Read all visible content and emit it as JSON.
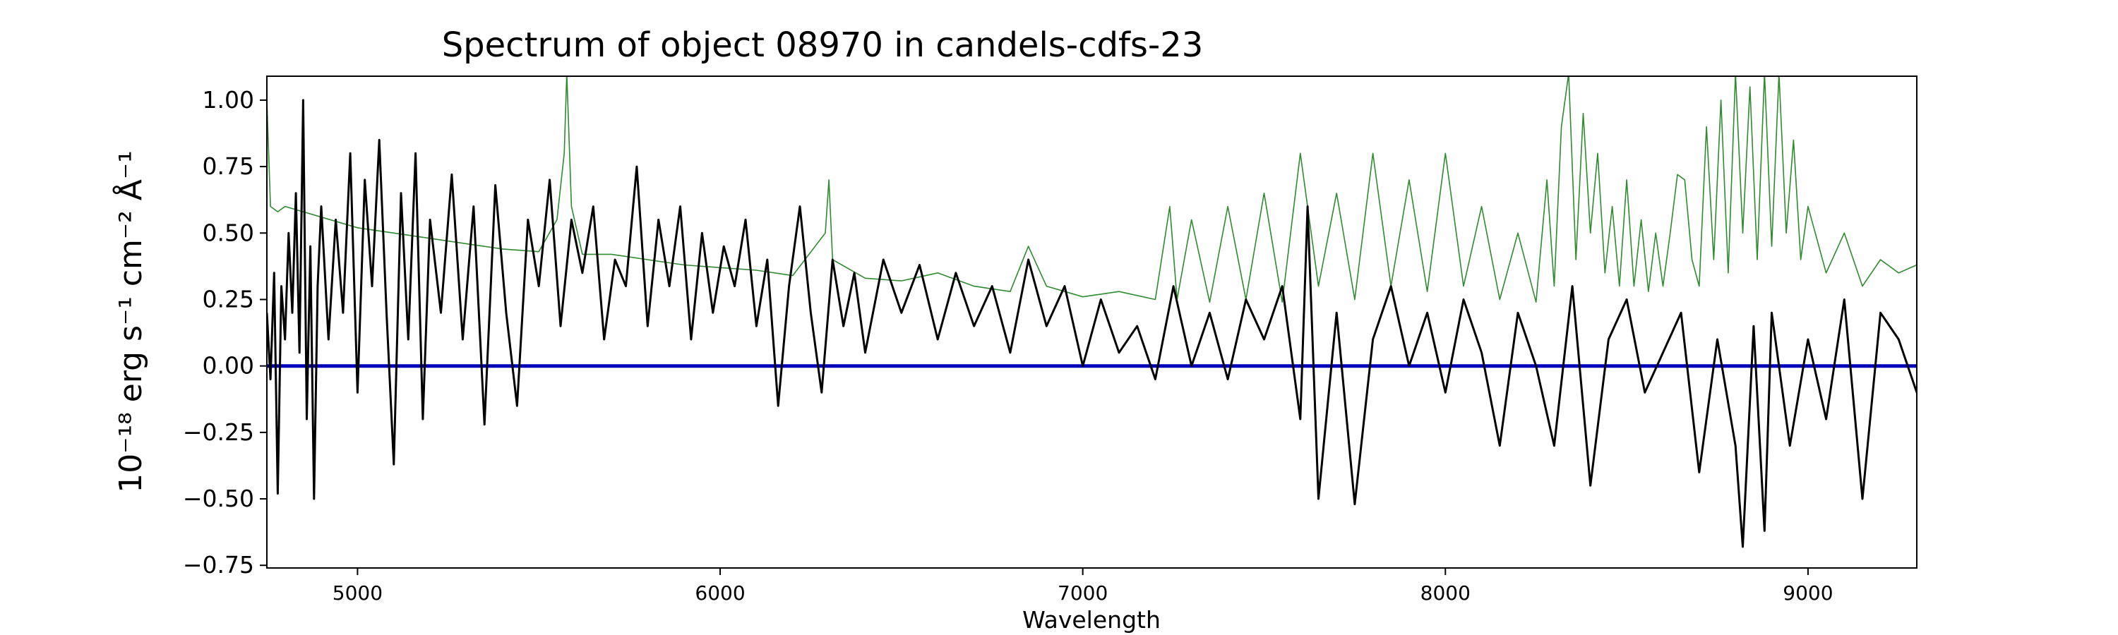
{
  "chart_data": {
    "type": "line",
    "title": "Spectrum of object 08970 in candels-cdfs-23",
    "xlabel": "Wavelength",
    "ylabel": "10⁻¹⁸ erg s⁻¹ cm⁻² Å⁻¹",
    "xlim": [
      4750,
      9300
    ],
    "ylim": [
      -0.76,
      1.09
    ],
    "xticks": [
      5000,
      6000,
      7000,
      8000,
      9000
    ],
    "yticks": [
      -0.75,
      -0.5,
      -0.25,
      0.0,
      0.25,
      0.5,
      0.75,
      1.0
    ],
    "xtick_labels": [
      "5000",
      "6000",
      "7000",
      "8000",
      "9000"
    ],
    "ytick_labels": [
      "−0.75",
      "−0.50",
      "−0.25",
      "0.00",
      "0.25",
      "0.50",
      "0.75",
      "1.00"
    ],
    "grid": false,
    "series": [
      {
        "color": "#000000",
        "x": [
          4750,
          4760,
          4770,
          4780,
          4790,
          4800,
          4810,
          4820,
          4830,
          4840,
          4850,
          4860,
          4870,
          4880,
          4890,
          4900,
          4920,
          4940,
          4960,
          4980,
          5000,
          5020,
          5040,
          5060,
          5080,
          5100,
          5120,
          5140,
          5160,
          5180,
          5200,
          5230,
          5260,
          5290,
          5320,
          5350,
          5380,
          5410,
          5440,
          5470,
          5500,
          5530,
          5560,
          5590,
          5620,
          5650,
          5680,
          5710,
          5740,
          5770,
          5800,
          5830,
          5860,
          5890,
          5920,
          5950,
          5980,
          6010,
          6040,
          6070,
          6100,
          6130,
          6160,
          6190,
          6220,
          6250,
          6280,
          6310,
          6340,
          6370,
          6400,
          6450,
          6500,
          6550,
          6600,
          6650,
          6700,
          6750,
          6800,
          6850,
          6900,
          6950,
          7000,
          7050,
          7100,
          7150,
          7200,
          7250,
          7300,
          7350,
          7400,
          7450,
          7500,
          7550,
          7600,
          7620,
          7650,
          7700,
          7750,
          7800,
          7850,
          7900,
          7950,
          8000,
          8050,
          8100,
          8150,
          8200,
          8250,
          8300,
          8350,
          8400,
          8450,
          8500,
          8550,
          8600,
          8650,
          8700,
          8750,
          8800,
          8820,
          8850,
          8880,
          8900,
          8950,
          9000,
          9050,
          9100,
          9150,
          9200,
          9250,
          9300
        ],
        "y": [
          0.2,
          -0.05,
          0.35,
          -0.48,
          0.3,
          0.1,
          0.5,
          0.2,
          0.65,
          0.05,
          1.0,
          -0.2,
          0.45,
          -0.5,
          0.3,
          0.6,
          0.1,
          0.55,
          0.2,
          0.8,
          -0.1,
          0.7,
          0.3,
          0.85,
          0.2,
          -0.37,
          0.65,
          0.1,
          0.8,
          -0.2,
          0.55,
          0.2,
          0.72,
          0.1,
          0.6,
          -0.22,
          0.68,
          0.2,
          -0.15,
          0.55,
          0.3,
          0.7,
          0.15,
          0.55,
          0.35,
          0.6,
          0.1,
          0.4,
          0.3,
          0.75,
          0.15,
          0.55,
          0.3,
          0.6,
          0.1,
          0.5,
          0.2,
          0.45,
          0.3,
          0.55,
          0.15,
          0.4,
          -0.15,
          0.3,
          0.6,
          0.2,
          -0.1,
          0.4,
          0.15,
          0.35,
          0.05,
          0.4,
          0.2,
          0.38,
          0.1,
          0.35,
          0.15,
          0.3,
          0.05,
          0.4,
          0.15,
          0.3,
          0.0,
          0.25,
          0.05,
          0.15,
          -0.05,
          0.3,
          0.0,
          0.2,
          -0.05,
          0.25,
          0.1,
          0.3,
          -0.2,
          0.6,
          -0.5,
          0.2,
          -0.52,
          0.1,
          0.3,
          0.0,
          0.2,
          -0.1,
          0.25,
          0.05,
          -0.3,
          0.2,
          0.0,
          -0.3,
          0.3,
          -0.45,
          0.1,
          0.25,
          -0.1,
          0.05,
          0.2,
          -0.4,
          0.1,
          -0.3,
          -0.68,
          0.15,
          -0.62,
          0.2,
          -0.3,
          0.1,
          -0.2,
          0.25,
          -0.5,
          0.2,
          0.1,
          -0.1
        ]
      },
      {
        "color": "#2e8b2e",
        "x": [
          4750,
          4760,
          4780,
          4800,
          4850,
          4900,
          5000,
          5100,
          5200,
          5300,
          5400,
          5500,
          5550,
          5570,
          5577,
          5590,
          5620,
          5700,
          5800,
          5900,
          6000,
          6100,
          6200,
          6290,
          6300,
          6310,
          6400,
          6500,
          6600,
          6700,
          6800,
          6850,
          6900,
          7000,
          7100,
          7200,
          7240,
          7260,
          7300,
          7350,
          7400,
          7450,
          7500,
          7550,
          7600,
          7650,
          7700,
          7750,
          7800,
          7850,
          7900,
          7950,
          8000,
          8050,
          8100,
          8150,
          8200,
          8250,
          8280,
          8300,
          8320,
          8340,
          8360,
          8380,
          8400,
          8420,
          8440,
          8460,
          8480,
          8500,
          8520,
          8540,
          8560,
          8580,
          8600,
          8620,
          8640,
          8660,
          8680,
          8700,
          8720,
          8740,
          8760,
          8780,
          8800,
          8820,
          8840,
          8860,
          8880,
          8900,
          8920,
          8940,
          8960,
          8980,
          9000,
          9050,
          9100,
          9150,
          9200,
          9250,
          9300
        ],
        "y": [
          1.0,
          0.6,
          0.58,
          0.6,
          0.58,
          0.56,
          0.52,
          0.5,
          0.48,
          0.46,
          0.44,
          0.43,
          0.55,
          0.8,
          1.1,
          0.6,
          0.42,
          0.42,
          0.4,
          0.38,
          0.37,
          0.36,
          0.34,
          0.5,
          0.7,
          0.4,
          0.33,
          0.32,
          0.35,
          0.3,
          0.28,
          0.45,
          0.3,
          0.26,
          0.28,
          0.25,
          0.6,
          0.25,
          0.55,
          0.24,
          0.6,
          0.25,
          0.65,
          0.24,
          0.8,
          0.3,
          0.65,
          0.25,
          0.8,
          0.3,
          0.7,
          0.28,
          0.8,
          0.3,
          0.6,
          0.25,
          0.5,
          0.24,
          0.7,
          0.3,
          0.9,
          1.1,
          0.4,
          0.95,
          0.5,
          0.8,
          0.35,
          0.6,
          0.3,
          0.7,
          0.3,
          0.55,
          0.28,
          0.5,
          0.3,
          0.5,
          0.72,
          0.7,
          0.4,
          0.3,
          0.9,
          0.4,
          1.0,
          0.35,
          1.1,
          0.5,
          1.05,
          0.4,
          1.1,
          0.45,
          1.1,
          0.5,
          0.85,
          0.4,
          0.6,
          0.35,
          0.5,
          0.3,
          0.4,
          0.35,
          0.38
        ]
      },
      {
        "color": "#0000bb",
        "x": [
          4750,
          9300
        ],
        "y": [
          0.0,
          0.0
        ]
      }
    ]
  }
}
